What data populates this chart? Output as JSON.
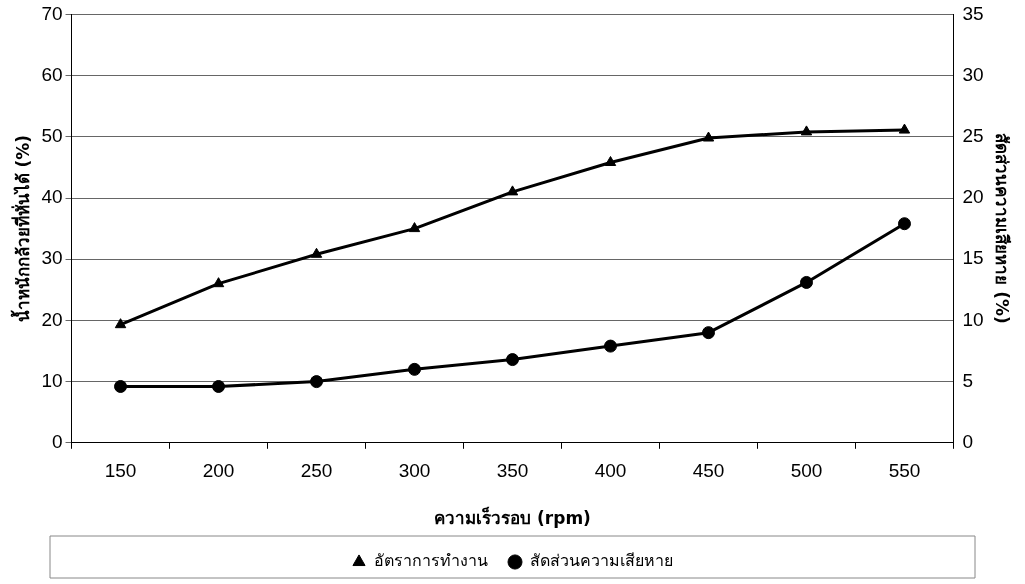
{
  "chart_data": {
    "type": "line",
    "xlabel": "ความเร็วรอบ (rpm)",
    "ylabel": "น้ำหนักกล้วยที่หั่นได้ (%)",
    "y2label": "สัดส่วนความเสียหาย (%)",
    "categories": [
      "150",
      "200",
      "250",
      "300",
      "350",
      "400",
      "450",
      "500",
      "550"
    ],
    "series": [
      {
        "name": "อัตราการทำงาน",
        "color": "#000000",
        "marker": "triangle",
        "values": [
          19.3,
          26,
          30.8,
          35,
          41,
          45.8,
          49.8,
          50.8,
          51.1
        ]
      },
      {
        "name": "สัดส่วนความเสียหาย",
        "color": "#000000",
        "marker": "circle",
        "axis": "y2",
        "values": [
          4.6,
          4.6,
          5,
          6,
          6.8,
          7.9,
          9,
          13.1,
          17.9
        ]
      }
    ],
    "ylim": [
      0,
      70
    ],
    "yticks": [
      0,
      10,
      20,
      30,
      40,
      50,
      60,
      70
    ],
    "y2lim": [
      0,
      35
    ],
    "y2ticks": [
      0,
      5,
      10,
      15,
      20,
      25,
      30,
      35
    ],
    "grid": "y",
    "legend": "bottom",
    "line_style": "solid"
  }
}
